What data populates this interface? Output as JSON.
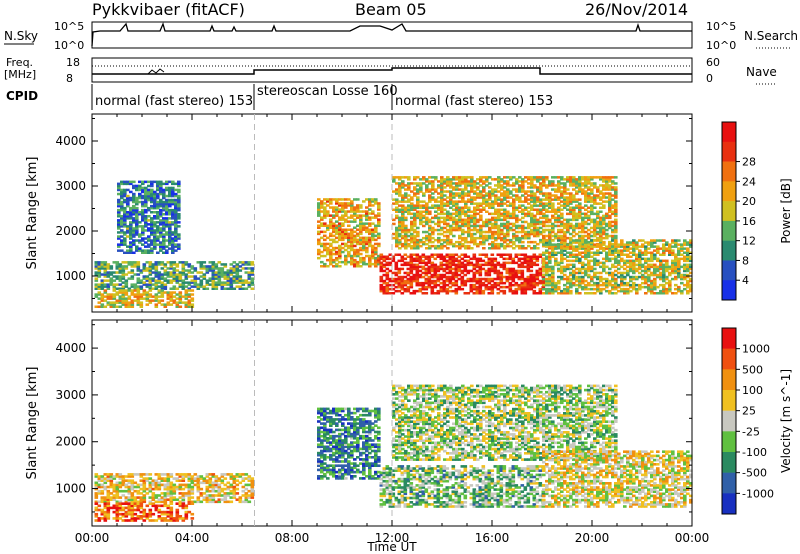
{
  "header": {
    "station": "Pykkvibaer (fitACF)",
    "beam": "Beam 05",
    "date": "26/Nov/2014"
  },
  "panels": {
    "nsky_label": "N.Sky",
    "nsky_ticks": [
      "10^5",
      "10^0"
    ],
    "nsearch_label": "N.Search",
    "nsearch_ticks": [
      "10^5",
      "10^0"
    ],
    "freq_label_1": "Freq.",
    "freq_label_2": "[MHz]",
    "freq_ticks": [
      "18",
      "8"
    ],
    "nave_label": "Nave",
    "nave_ticks": [
      "60",
      "0"
    ],
    "cpid_label": "CPID",
    "cpid_segments": [
      {
        "label": "normal (fast stereo) 153",
        "start": 0,
        "end": 6.5
      },
      {
        "label": "stereoscan Losse 160",
        "start": 6.5,
        "end": 12.0
      },
      {
        "label": "normal (fast stereo) 153",
        "start": 12.0,
        "end": 24
      }
    ]
  },
  "chart_data": [
    {
      "type": "heatmap",
      "title": "Power",
      "ylabel": "Slant Range [km]",
      "xlabel": "Time UT",
      "xlim": [
        0,
        24
      ],
      "ylim": [
        200,
        4600
      ],
      "xticks": [
        "00:00",
        "04:00",
        "08:00",
        "12:00",
        "16:00",
        "20:00",
        "00:00"
      ],
      "yticks": [
        1000,
        2000,
        3000,
        4000
      ],
      "colorbar": {
        "label": "Power [dB]",
        "ticks": [
          "4",
          "8",
          "12",
          "16",
          "20",
          "24",
          "28"
        ],
        "colors": [
          "#1830e8",
          "#2850c0",
          "#2a8a70",
          "#5ab060",
          "#d0c020",
          "#f0a010",
          "#f07010",
          "#e83010",
          "#e81010"
        ]
      },
      "regions": [
        {
          "t0": 0.1,
          "t1": 6.4,
          "r0": 700,
          "r1": 1300,
          "level": 0.35
        },
        {
          "t0": 0.1,
          "t1": 4.0,
          "r0": 300,
          "r1": 700,
          "level": 0.55
        },
        {
          "t0": 1.0,
          "t1": 3.5,
          "r0": 1500,
          "r1": 3100,
          "level": 0.25
        },
        {
          "t0": 9.0,
          "t1": 11.5,
          "r0": 1200,
          "r1": 2700,
          "level": 0.6
        },
        {
          "t0": 11.5,
          "t1": 18.0,
          "r0": 600,
          "r1": 1500,
          "level": 0.9
        },
        {
          "t0": 12.0,
          "t1": 21.0,
          "r0": 1600,
          "r1": 3200,
          "level": 0.55
        },
        {
          "t0": 18.0,
          "t1": 23.9,
          "r0": 600,
          "r1": 1800,
          "level": 0.5
        }
      ]
    },
    {
      "type": "heatmap",
      "title": "Velocity",
      "ylabel": "Slant Range [km]",
      "xlabel": "Time UT",
      "xlim": [
        0,
        24
      ],
      "ylim": [
        200,
        4600
      ],
      "xticks": [
        "00:00",
        "04:00",
        "08:00",
        "12:00",
        "16:00",
        "20:00",
        "00:00"
      ],
      "yticks": [
        1000,
        2000,
        3000,
        4000
      ],
      "colorbar": {
        "label": "Velocity [m s^-1]",
        "ticks": [
          "1000",
          "500",
          "100",
          "25",
          "-25",
          "-100",
          "-500",
          "-1000"
        ],
        "colors": [
          "#1830c0",
          "#3060a8",
          "#2a8a60",
          "#60c040",
          "#c8c8c0",
          "#f0c020",
          "#f09010",
          "#f05010",
          "#e81010"
        ]
      },
      "regions": [
        {
          "t0": 0.1,
          "t1": 6.4,
          "r0": 700,
          "r1": 1300,
          "level": 0.6
        },
        {
          "t0": 0.1,
          "t1": 4.0,
          "r0": 300,
          "r1": 700,
          "level": 0.8
        },
        {
          "t0": 9.0,
          "t1": 11.5,
          "r0": 1200,
          "r1": 2700,
          "level": 0.25
        },
        {
          "t0": 11.5,
          "t1": 18.0,
          "r0": 600,
          "r1": 1500,
          "level": 0.4
        },
        {
          "t0": 12.0,
          "t1": 21.0,
          "r0": 1600,
          "r1": 3200,
          "level": 0.45
        },
        {
          "t0": 18.0,
          "t1": 23.9,
          "r0": 600,
          "r1": 1800,
          "level": 0.55
        }
      ]
    }
  ]
}
